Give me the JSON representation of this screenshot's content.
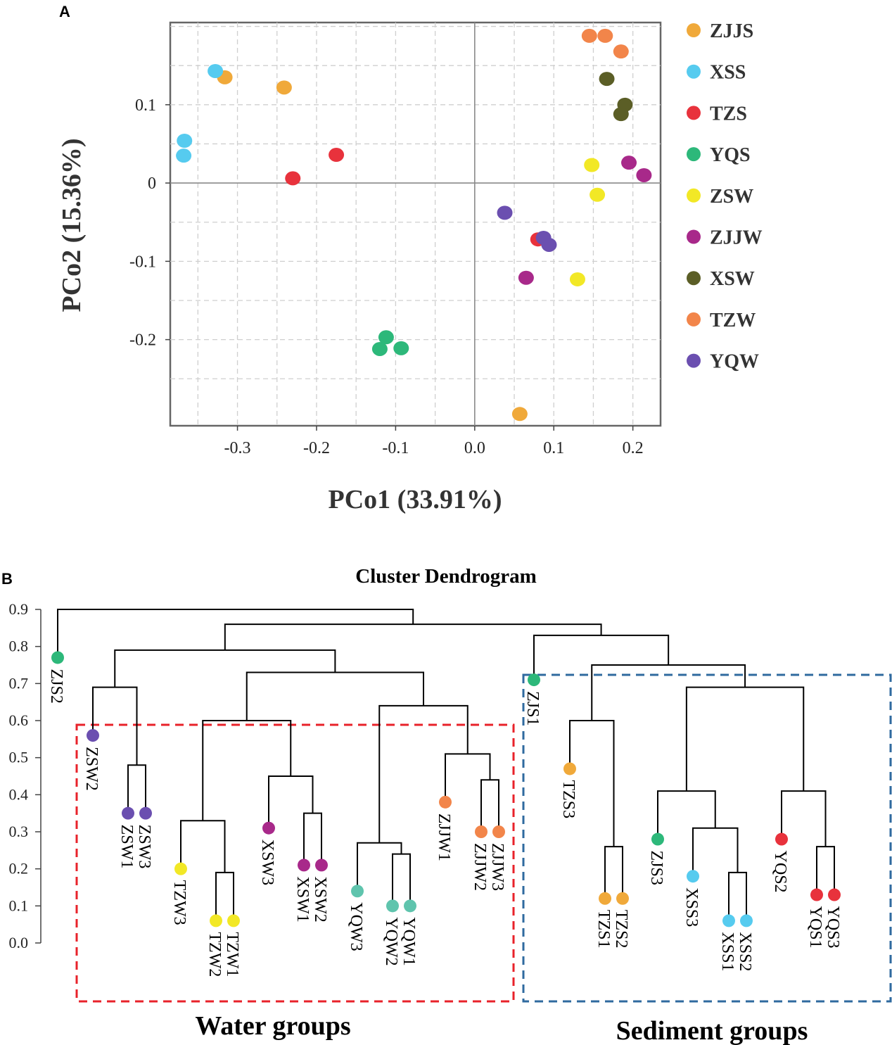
{
  "chart_data": [
    {
      "type": "scatter",
      "panel_label": "A",
      "xlabel": "PCo1 (33.91%)",
      "ylabel": "PCo2 (15.36%)",
      "xlim": [
        -0.385,
        0.235
      ],
      "ylim": [
        -0.31,
        0.205
      ],
      "xticks": [
        -0.3,
        -0.2,
        -0.1,
        0.0,
        0.1,
        0.2
      ],
      "xtick_labels": [
        "-0.3",
        "-0.2",
        "-0.1",
        "0.0",
        "0.1",
        "0.2"
      ],
      "yticks": [
        -0.2,
        -0.1,
        0,
        0.1
      ],
      "ytick_labels": [
        "-0.2",
        "-0.1",
        "0",
        "0.1"
      ],
      "grid": true,
      "legend_position": "right",
      "series": [
        {
          "name": "ZJJS",
          "color": "#F0A93A",
          "points": [
            [
              -0.316,
              0.135
            ],
            [
              -0.241,
              0.122
            ],
            [
              0.057,
              -0.295
            ]
          ]
        },
        {
          "name": "XSS",
          "color": "#56CBEF",
          "points": [
            [
              -0.328,
              0.143
            ],
            [
              -0.367,
              0.054
            ],
            [
              -0.368,
              0.035
            ]
          ]
        },
        {
          "name": "TZS",
          "color": "#E8323C",
          "points": [
            [
              -0.175,
              0.036
            ],
            [
              -0.23,
              0.006
            ],
            [
              0.08,
              -0.072
            ]
          ]
        },
        {
          "name": "YQS",
          "color": "#2DB87A",
          "points": [
            [
              -0.112,
              -0.197
            ],
            [
              -0.12,
              -0.212
            ],
            [
              -0.093,
              -0.211
            ]
          ]
        },
        {
          "name": "ZSW",
          "color": "#F2E826",
          "points": [
            [
              0.148,
              0.023
            ],
            [
              0.155,
              -0.015
            ],
            [
              0.13,
              -0.123
            ]
          ]
        },
        {
          "name": "ZJJW",
          "color": "#A8298A",
          "points": [
            [
              0.195,
              0.026
            ],
            [
              0.214,
              0.01
            ],
            [
              0.065,
              -0.121
            ]
          ]
        },
        {
          "name": "XSW",
          "color": "#5B5E26",
          "points": [
            [
              0.167,
              0.133
            ],
            [
              0.19,
              0.1
            ],
            [
              0.185,
              0.088
            ]
          ]
        },
        {
          "name": "TZW",
          "color": "#F2854A",
          "points": [
            [
              0.145,
              0.188
            ],
            [
              0.165,
              0.188
            ],
            [
              0.185,
              0.168
            ]
          ]
        },
        {
          "name": "YQW",
          "color": "#6B4FB0",
          "points": [
            [
              0.038,
              -0.038
            ],
            [
              0.087,
              -0.07
            ],
            [
              0.094,
              -0.079
            ]
          ]
        }
      ]
    },
    {
      "type": "dendrogram",
      "panel_label": "B",
      "title": "Cluster Dendrogram",
      "ylim": [
        0,
        0.9
      ],
      "yticks": [
        0.0,
        0.1,
        0.2,
        0.3,
        0.4,
        0.5,
        0.6,
        0.7,
        0.8,
        0.9
      ],
      "ytick_labels": [
        "0.0",
        "0.1",
        "0.2",
        "0.3",
        "0.4",
        "0.5",
        "0.6",
        "0.7",
        "0.8",
        "0.9"
      ],
      "leaves": [
        {
          "label": "ZJS2",
          "height": 0.77,
          "color": "#2DB87A"
        },
        {
          "label": "ZSW2",
          "height": 0.56,
          "color": "#6B4FB0"
        },
        {
          "label": "ZSW1",
          "height": 0.35,
          "color": "#6B4FB0"
        },
        {
          "label": "ZSW3",
          "height": 0.35,
          "color": "#6B4FB0"
        },
        {
          "label": "TZW3",
          "height": 0.2,
          "color": "#F2E826"
        },
        {
          "label": "TZW2",
          "height": 0.06,
          "color": "#F2E826"
        },
        {
          "label": "TZW1",
          "height": 0.06,
          "color": "#F2E826"
        },
        {
          "label": "XSW3",
          "height": 0.31,
          "color": "#A8298A"
        },
        {
          "label": "XSW1",
          "height": 0.21,
          "color": "#A8298A"
        },
        {
          "label": "XSW2",
          "height": 0.21,
          "color": "#A8298A"
        },
        {
          "label": "YQW3",
          "height": 0.14,
          "color": "#5FC4AD"
        },
        {
          "label": "YQW2",
          "height": 0.1,
          "color": "#5FC4AD"
        },
        {
          "label": "YQW1",
          "height": 0.1,
          "color": "#5FC4AD"
        },
        {
          "label": "ZJJW1",
          "height": 0.38,
          "color": "#F2854A"
        },
        {
          "label": "ZJJW2",
          "height": 0.3,
          "color": "#F2854A"
        },
        {
          "label": "ZJJW3",
          "height": 0.3,
          "color": "#F2854A"
        },
        {
          "label": "ZJS1",
          "height": 0.71,
          "color": "#2DB87A"
        },
        {
          "label": "TZS3",
          "height": 0.47,
          "color": "#F0A93A"
        },
        {
          "label": "TZS1",
          "height": 0.12,
          "color": "#F0A93A"
        },
        {
          "label": "TZS2",
          "height": 0.12,
          "color": "#F0A93A"
        },
        {
          "label": "ZJS3",
          "height": 0.28,
          "color": "#2DB87A"
        },
        {
          "label": "XSS3",
          "height": 0.18,
          "color": "#56CBEF"
        },
        {
          "label": "XSS1",
          "height": 0.06,
          "color": "#56CBEF"
        },
        {
          "label": "XSS2",
          "height": 0.06,
          "color": "#56CBEF"
        },
        {
          "label": "YQS2",
          "height": 0.28,
          "color": "#E8323C"
        },
        {
          "label": "YQS1",
          "height": 0.13,
          "color": "#E8323C"
        },
        {
          "label": "YQS3",
          "height": 0.13,
          "color": "#E8323C"
        }
      ],
      "merges": [
        {
          "id": "m1",
          "children": [
            "ZSW1",
            "ZSW3"
          ],
          "height": 0.48
        },
        {
          "id": "m2",
          "children": [
            "ZSW2",
            "m1"
          ],
          "height": 0.69
        },
        {
          "id": "m3",
          "children": [
            "TZW2",
            "TZW1"
          ],
          "height": 0.19
        },
        {
          "id": "m4",
          "children": [
            "TZW3",
            "m3"
          ],
          "height": 0.33
        },
        {
          "id": "m5",
          "children": [
            "XSW1",
            "XSW2"
          ],
          "height": 0.35
        },
        {
          "id": "m6",
          "children": [
            "XSW3",
            "m5"
          ],
          "height": 0.45
        },
        {
          "id": "m7",
          "children": [
            "m4",
            "m6"
          ],
          "height": 0.6
        },
        {
          "id": "m8",
          "children": [
            "YQW2",
            "YQW1"
          ],
          "height": 0.24
        },
        {
          "id": "m9",
          "children": [
            "YQW3",
            "m8"
          ],
          "height": 0.27
        },
        {
          "id": "m10",
          "children": [
            "ZJJW2",
            "ZJJW3"
          ],
          "height": 0.44
        },
        {
          "id": "m11",
          "children": [
            "ZJJW1",
            "m10"
          ],
          "height": 0.51
        },
        {
          "id": "m12",
          "children": [
            "m9",
            "m11"
          ],
          "height": 0.64
        },
        {
          "id": "m13",
          "children": [
            "m7",
            "m12"
          ],
          "height": 0.73
        },
        {
          "id": "m14",
          "children": [
            "m2",
            "m13"
          ],
          "height": 0.79
        },
        {
          "id": "m15",
          "children": [
            "TZS1",
            "TZS2"
          ],
          "height": 0.26
        },
        {
          "id": "m16",
          "children": [
            "TZS3",
            "m15"
          ],
          "height": 0.6
        },
        {
          "id": "m17",
          "children": [
            "XSS1",
            "XSS2"
          ],
          "height": 0.19
        },
        {
          "id": "m18",
          "children": [
            "XSS3",
            "m17"
          ],
          "height": 0.31
        },
        {
          "id": "m19",
          "children": [
            "ZJS3",
            "m18"
          ],
          "height": 0.41
        },
        {
          "id": "m20",
          "children": [
            "YQS1",
            "YQS3"
          ],
          "height": 0.26
        },
        {
          "id": "m21",
          "children": [
            "YQS2",
            "m20"
          ],
          "height": 0.41
        },
        {
          "id": "m22",
          "children": [
            "m19",
            "m21"
          ],
          "height": 0.69
        },
        {
          "id": "m23",
          "children": [
            "m16",
            "m22"
          ],
          "height": 0.75
        },
        {
          "id": "m24",
          "children": [
            "ZJS1",
            "m23"
          ],
          "height": 0.83
        },
        {
          "id": "m25",
          "children": [
            "m14",
            "m24"
          ],
          "height": 0.86
        },
        {
          "id": "m26",
          "children": [
            "ZJS2",
            "m25"
          ],
          "height": 0.9
        }
      ],
      "groups": [
        {
          "label": "Water groups",
          "color": "#E8222A",
          "first_leaf": "ZSW2",
          "last_leaf": "ZJJW3"
        },
        {
          "label": "Sediment groups",
          "color": "#2F6A9F",
          "first_leaf": "ZJS1",
          "last_leaf": "YQS3"
        }
      ]
    }
  ]
}
